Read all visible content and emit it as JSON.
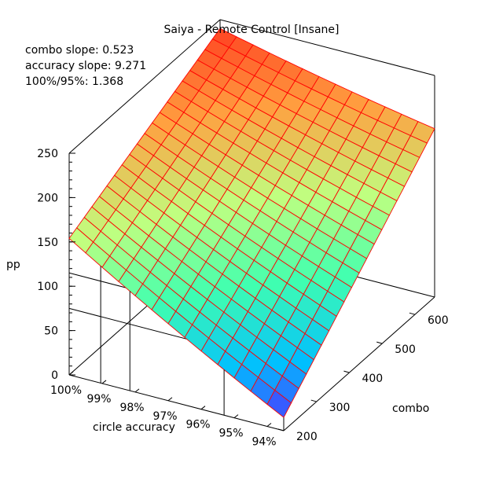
{
  "chart_data": {
    "type": "surface",
    "title": "Saiya - Remote Control [Insane]",
    "annotations": [
      "combo slope: 0.523",
      "accuracy slope: 9.271",
      "100%/95%: 1.368"
    ],
    "zlabel": "pp",
    "xlabel": "circle accuracy",
    "ylabel": "combo",
    "z_ticks": [
      "0",
      "50",
      "100",
      "150",
      "200",
      "250"
    ],
    "x_ticks": [
      "100%",
      "99%",
      "98%",
      "97%",
      "96%",
      "95%",
      "94%"
    ],
    "y_ticks": [
      "200",
      "300",
      "400",
      "500",
      "600"
    ],
    "zlim": [
      0,
      250
    ],
    "corner_values": {
      "acc100_combo200": 154,
      "acc100_combo660": 240,
      "acc935_combo200": 15,
      "acc935_combo660": 190
    },
    "colormap": [
      "#6a00ff",
      "#00bfff",
      "#40ffb0",
      "#c0ff80",
      "#ffa040",
      "#ff2a1a"
    ],
    "grid_color": "#ff0000"
  }
}
